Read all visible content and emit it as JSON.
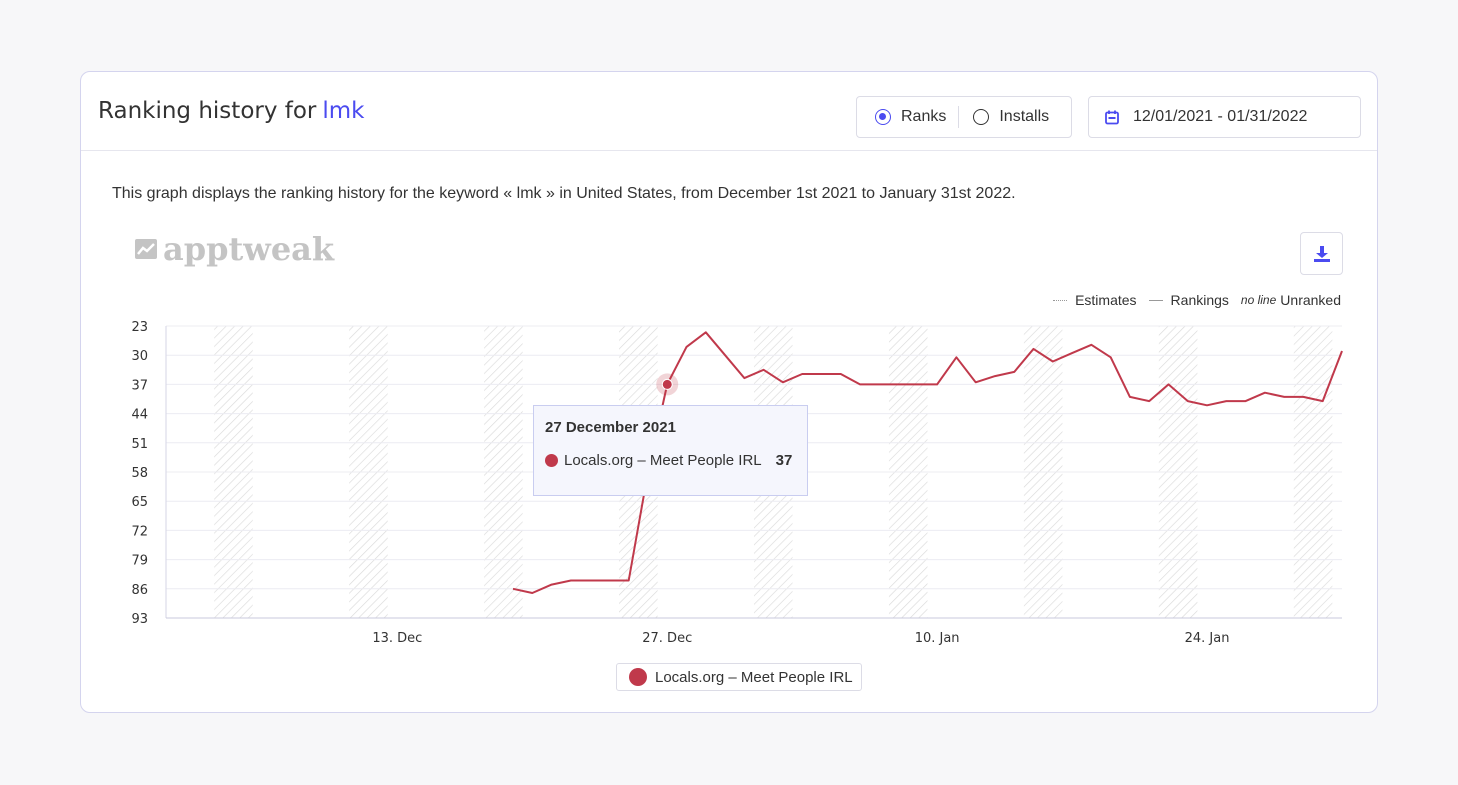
{
  "header": {
    "title_prefix": "Ranking history for",
    "keyword": "lmk",
    "toggle": {
      "ranks_label": "Ranks",
      "installs_label": "Installs",
      "selected": "Ranks"
    },
    "date_range": "12/01/2021 - 01/31/2022"
  },
  "description": "This graph displays the ranking history for the keyword « lmk » in United States, from December 1st 2021 to January 31st 2022.",
  "logo_text": "apptweak",
  "key_legend": {
    "estimates": "Estimates",
    "rankings": "Rankings",
    "no_line": "no line",
    "unranked": "Unranked"
  },
  "tooltip": {
    "date": "27 December 2021",
    "series": "Locals.org – Meet People IRL",
    "value": "37"
  },
  "colors": {
    "accent": "#4b4bf0",
    "series": "#c0394b"
  },
  "chart_data": {
    "type": "line",
    "title": "",
    "xlabel": "",
    "ylabel": "",
    "y_reversed": true,
    "ylim": [
      23,
      93
    ],
    "y_ticks": [
      23,
      30,
      37,
      44,
      51,
      58,
      65,
      72,
      79,
      86,
      93
    ],
    "x_range": [
      "2021-12-01",
      "2022-01-31"
    ],
    "x_ticks": [
      {
        "date": "2021-12-13",
        "label": "13. Dec"
      },
      {
        "date": "2021-12-27",
        "label": "27. Dec"
      },
      {
        "date": "2022-01-10",
        "label": "10. Jan"
      },
      {
        "date": "2022-01-24",
        "label": "24. Jan"
      }
    ],
    "estimate_weekends": [
      [
        "2021-12-04",
        "2021-12-05"
      ],
      [
        "2021-12-11",
        "2021-12-12"
      ],
      [
        "2021-12-18",
        "2021-12-19"
      ],
      [
        "2021-12-25",
        "2021-12-26"
      ],
      [
        "2022-01-01",
        "2022-01-02"
      ],
      [
        "2022-01-08",
        "2022-01-09"
      ],
      [
        "2022-01-15",
        "2022-01-16"
      ],
      [
        "2022-01-22",
        "2022-01-23"
      ],
      [
        "2022-01-29",
        "2022-01-30"
      ]
    ],
    "grid": true,
    "highlight": {
      "date": "2021-12-27",
      "value": 37
    },
    "series": [
      {
        "name": "Locals.org – Meet People IRL",
        "points": [
          [
            "2021-12-19",
            86
          ],
          [
            "2021-12-20",
            87
          ],
          [
            "2021-12-21",
            85
          ],
          [
            "2021-12-22",
            84
          ],
          [
            "2021-12-23",
            84
          ],
          [
            "2021-12-24",
            84
          ],
          [
            "2021-12-25",
            84
          ],
          [
            "2021-12-26",
            58
          ],
          [
            "2021-12-27",
            37
          ],
          [
            "2021-12-28",
            28
          ],
          [
            "2021-12-29",
            24.5
          ],
          [
            "2021-12-30",
            30
          ],
          [
            "2021-12-31",
            35.5
          ],
          [
            "2022-01-01",
            33.5
          ],
          [
            "2022-01-02",
            36.5
          ],
          [
            "2022-01-03",
            34.5
          ],
          [
            "2022-01-04",
            34.5
          ],
          [
            "2022-01-05",
            34.5
          ],
          [
            "2022-01-06",
            37
          ],
          [
            "2022-01-07",
            37
          ],
          [
            "2022-01-08",
            37
          ],
          [
            "2022-01-09",
            37
          ],
          [
            "2022-01-10",
            37
          ],
          [
            "2022-01-11",
            30.5
          ],
          [
            "2022-01-12",
            36.5
          ],
          [
            "2022-01-13",
            35
          ],
          [
            "2022-01-14",
            34
          ],
          [
            "2022-01-15",
            28.5
          ],
          [
            "2022-01-16",
            31.5
          ],
          [
            "2022-01-17",
            29.5
          ],
          [
            "2022-01-18",
            27.5
          ],
          [
            "2022-01-19",
            30.5
          ],
          [
            "2022-01-20",
            40
          ],
          [
            "2022-01-21",
            41
          ],
          [
            "2022-01-22",
            37
          ],
          [
            "2022-01-23",
            41
          ],
          [
            "2022-01-24",
            42
          ],
          [
            "2022-01-25",
            41
          ],
          [
            "2022-01-26",
            41
          ],
          [
            "2022-01-27",
            39
          ],
          [
            "2022-01-28",
            40
          ],
          [
            "2022-01-29",
            40
          ],
          [
            "2022-01-30",
            41
          ],
          [
            "2022-01-31",
            29
          ]
        ]
      }
    ]
  }
}
